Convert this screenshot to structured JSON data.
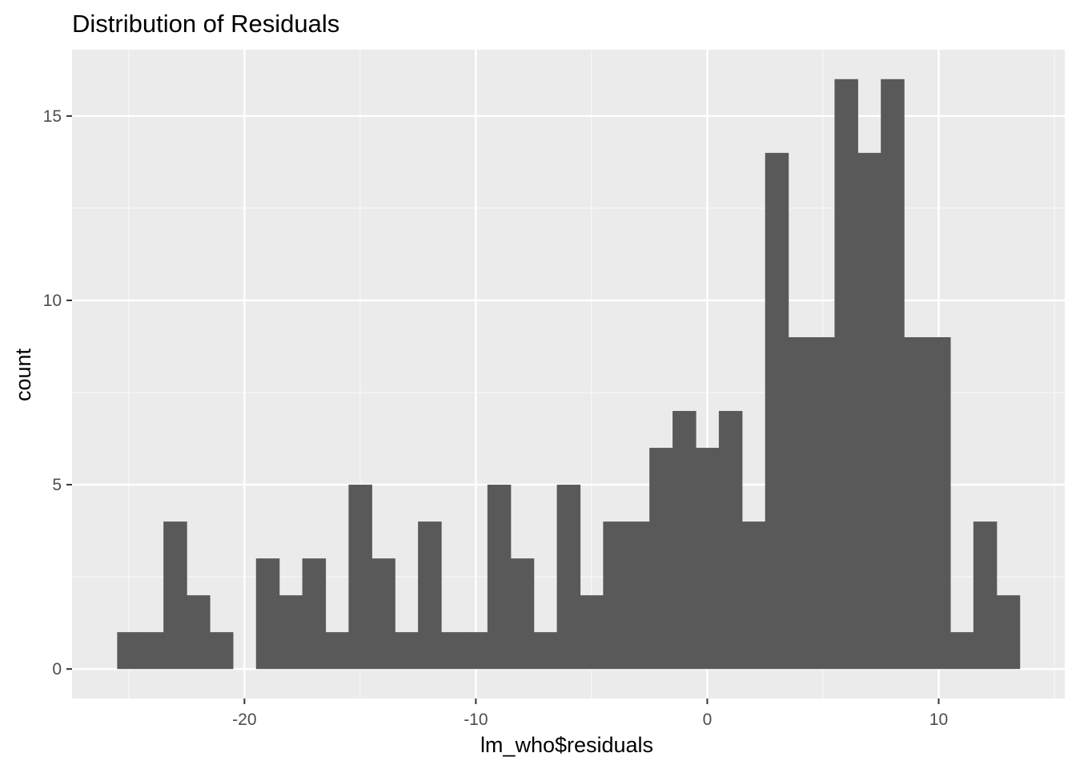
{
  "chart_data": {
    "type": "bar",
    "title": "Distribution of Residuals",
    "xlabel": "lm_who$residuals",
    "ylabel": "count",
    "bin_width": 1,
    "bins": [
      {
        "x0": -25.5,
        "x1": -24.5,
        "count": 1
      },
      {
        "x0": -24.5,
        "x1": -23.5,
        "count": 1
      },
      {
        "x0": -23.5,
        "x1": -22.5,
        "count": 4
      },
      {
        "x0": -22.5,
        "x1": -21.5,
        "count": 2
      },
      {
        "x0": -21.5,
        "x1": -20.5,
        "count": 1
      },
      {
        "x0": -20.5,
        "x1": -19.5,
        "count": 0
      },
      {
        "x0": -19.5,
        "x1": -18.5,
        "count": 3
      },
      {
        "x0": -18.5,
        "x1": -17.5,
        "count": 2
      },
      {
        "x0": -17.5,
        "x1": -16.5,
        "count": 3
      },
      {
        "x0": -16.5,
        "x1": -15.5,
        "count": 1
      },
      {
        "x0": -15.5,
        "x1": -14.5,
        "count": 5
      },
      {
        "x0": -14.5,
        "x1": -13.5,
        "count": 3
      },
      {
        "x0": -13.5,
        "x1": -12.5,
        "count": 1
      },
      {
        "x0": -12.5,
        "x1": -11.5,
        "count": 4
      },
      {
        "x0": -11.5,
        "x1": -10.5,
        "count": 1
      },
      {
        "x0": -10.5,
        "x1": -9.5,
        "count": 1
      },
      {
        "x0": -9.5,
        "x1": -8.5,
        "count": 5
      },
      {
        "x0": -8.5,
        "x1": -7.5,
        "count": 3
      },
      {
        "x0": -7.5,
        "x1": -6.5,
        "count": 1
      },
      {
        "x0": -6.5,
        "x1": -5.5,
        "count": 5
      },
      {
        "x0": -5.5,
        "x1": -4.5,
        "count": 2
      },
      {
        "x0": -4.5,
        "x1": -3.5,
        "count": 4
      },
      {
        "x0": -3.5,
        "x1": -2.5,
        "count": 4
      },
      {
        "x0": -2.5,
        "x1": -1.5,
        "count": 6
      },
      {
        "x0": -1.5,
        "x1": -0.5,
        "count": 7
      },
      {
        "x0": -0.5,
        "x1": 0.5,
        "count": 6
      },
      {
        "x0": 0.5,
        "x1": 1.5,
        "count": 7
      },
      {
        "x0": 1.5,
        "x1": 2.5,
        "count": 4
      },
      {
        "x0": 2.5,
        "x1": 3.5,
        "count": 14
      },
      {
        "x0": 3.5,
        "x1": 4.5,
        "count": 9
      },
      {
        "x0": 4.5,
        "x1": 5.5,
        "count": 9
      },
      {
        "x0": 5.5,
        "x1": 6.5,
        "count": 16
      },
      {
        "x0": 6.5,
        "x1": 7.5,
        "count": 14
      },
      {
        "x0": 7.5,
        "x1": 8.5,
        "count": 16
      },
      {
        "x0": 8.5,
        "x1": 9.5,
        "count": 9
      },
      {
        "x0": 9.5,
        "x1": 10.5,
        "count": 9
      },
      {
        "x0": 10.5,
        "x1": 11.5,
        "count": 1
      },
      {
        "x0": 11.5,
        "x1": 12.5,
        "count": 4
      },
      {
        "x0": 12.5,
        "x1": 13.5,
        "count": 2
      }
    ],
    "xlim": [
      -27.45,
      15.45
    ],
    "ylim": [
      -0.8,
      16.8
    ],
    "x_ticks": [
      -20,
      -10,
      0,
      10
    ],
    "x_tick_labels": [
      "-20",
      "-10",
      "0",
      "10"
    ],
    "y_ticks": [
      0,
      5,
      10,
      15
    ],
    "y_tick_labels": [
      "0",
      "5",
      "10",
      "15"
    ],
    "grid": true,
    "legend": "none",
    "colors": {
      "panel_background": "#ebebeb",
      "grid_major": "#ffffff",
      "grid_minor": "#f7f7f7",
      "bar_fill": "#595959",
      "tick_text": "#4d4d4d",
      "tick_mark": "#333333"
    }
  }
}
